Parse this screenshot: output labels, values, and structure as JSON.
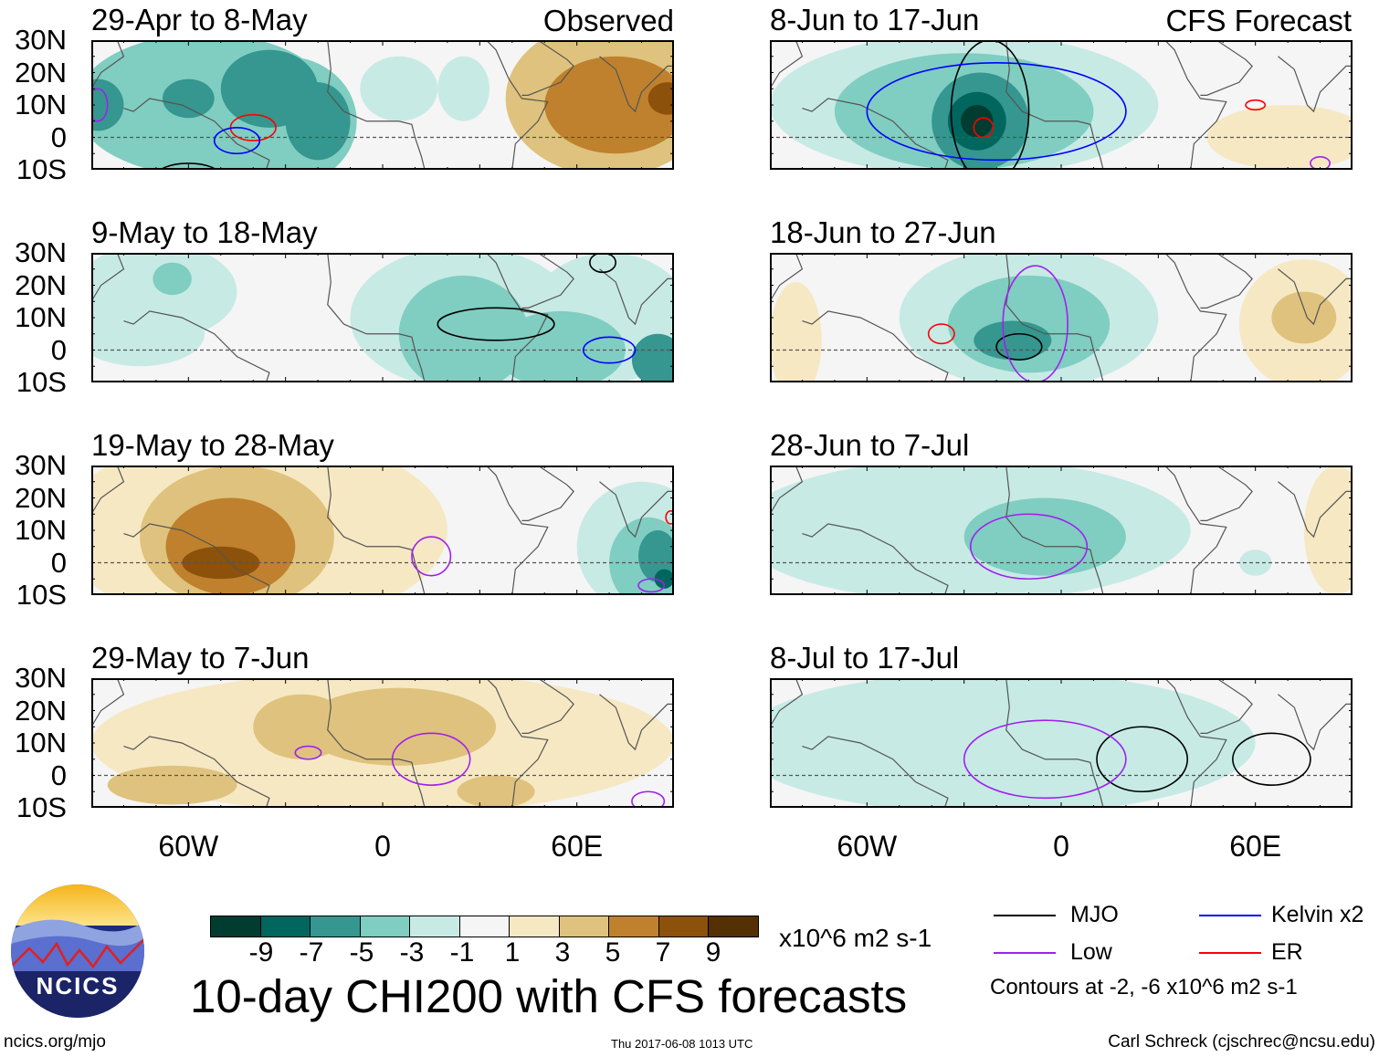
{
  "figure": {
    "title": "10-day CHI200 with CFS forecasts",
    "units": "x10^6 m2 s-1",
    "left_header": "Observed",
    "right_header": "CFS Forecast",
    "site": "ncics.org/mjo",
    "timestamp": "Thu 2017-06-08 1013 UTC",
    "author": "Carl Schreck (cjschrec@ncsu.edu)",
    "logo_text": "NCICS"
  },
  "axes": {
    "lat_labels": [
      "30N",
      "20N",
      "10N",
      "0",
      "10S"
    ],
    "lon_labels": [
      "60W",
      "0",
      "60E"
    ],
    "lon_values": [
      -60,
      0,
      60
    ],
    "lon_range": [
      -90,
      90
    ],
    "lat_range": [
      -10,
      30
    ]
  },
  "colorbar": {
    "colors": [
      "#003c30",
      "#01665e",
      "#35978f",
      "#80cdc1",
      "#c7eae5",
      "#f5f5f5",
      "#f6e8c3",
      "#dfc27d",
      "#bf812d",
      "#8c510a",
      "#543005"
    ],
    "labels": [
      "-9",
      "-7",
      "-5",
      "-3",
      "-1",
      "1",
      "3",
      "5",
      "7",
      "9"
    ],
    "level_colors": {
      "-9": "#003c30",
      "-7": "#01665e",
      "-5": "#35978f",
      "-3": "#80cdc1",
      "-1": "#c7eae5",
      "1": "#f6e8c3",
      "3": "#dfc27d",
      "5": "#bf812d",
      "7": "#8c510a",
      "9": "#543005"
    }
  },
  "legend": {
    "items": [
      {
        "label": "MJO",
        "color": "#000000"
      },
      {
        "label": "Kelvin x2",
        "color": "#0000ff"
      },
      {
        "label": "Low",
        "color": "#a020f0"
      },
      {
        "label": "ER",
        "color": "#ff0000"
      }
    ],
    "note": "Contours at -2, -6 x10^6 m2 s-1"
  },
  "panels": [
    {
      "title": "29-Apr to 8-May",
      "column": "left",
      "row": 0,
      "fill": [
        [
          -55,
          10,
          40,
          22,
          -3
        ],
        [
          -30,
          5,
          22,
          20,
          -3
        ],
        [
          -88,
          10,
          8,
          8,
          -5
        ],
        [
          -35,
          15,
          15,
          12,
          -5
        ],
        [
          -60,
          12,
          8,
          6,
          -5
        ],
        [
          -20,
          5,
          10,
          12,
          -5
        ],
        [
          5,
          15,
          12,
          10,
          -1
        ],
        [
          25,
          15,
          8,
          10,
          -1
        ],
        [
          70,
          12,
          32,
          24,
          3
        ],
        [
          72,
          10,
          22,
          15,
          5
        ],
        [
          88,
          12,
          6,
          5,
          7
        ]
      ],
      "contours": [
        [
          -40,
          3,
          7,
          4,
          "#ff0000"
        ],
        [
          -45,
          -1,
          7,
          4,
          "#0000ff"
        ],
        [
          -88,
          10,
          3,
          5,
          "#a020f0"
        ],
        [
          -60,
          -12,
          10,
          4,
          "#000000"
        ]
      ]
    },
    {
      "title": "9-May to 18-May",
      "column": "left",
      "row": 1,
      "fill": [
        [
          -70,
          18,
          25,
          15,
          -1
        ],
        [
          -75,
          5,
          20,
          10,
          -1
        ],
        [
          25,
          10,
          35,
          22,
          -1
        ],
        [
          70,
          10,
          25,
          20,
          -1
        ],
        [
          -65,
          22,
          6,
          5,
          -3
        ],
        [
          25,
          5,
          20,
          18,
          -3
        ],
        [
          55,
          0,
          20,
          12,
          -3
        ],
        [
          85,
          -3,
          8,
          8,
          -5
        ]
      ],
      "contours": [
        [
          35,
          8,
          18,
          5,
          "#000000"
        ],
        [
          70,
          0,
          8,
          4,
          "#0000ff"
        ],
        [
          68,
          27,
          4,
          3,
          "#000000"
        ]
      ]
    },
    {
      "title": "19-May to 28-May",
      "column": "left",
      "row": 2,
      "fill": [
        [
          -40,
          10,
          60,
          30,
          1
        ],
        [
          -45,
          8,
          30,
          22,
          3
        ],
        [
          -47,
          5,
          20,
          15,
          5
        ],
        [
          -50,
          0,
          12,
          5,
          7
        ],
        [
          80,
          5,
          20,
          20,
          -1
        ],
        [
          82,
          0,
          12,
          14,
          -3
        ],
        [
          85,
          2,
          6,
          8,
          -5
        ],
        [
          87,
          -5,
          3,
          3,
          -7
        ]
      ],
      "contours": [
        [
          15,
          2,
          6,
          6,
          "#a020f0"
        ],
        [
          83,
          -7,
          4,
          2,
          "#a020f0"
        ],
        [
          89,
          14,
          1.5,
          2,
          "#ff0000"
        ]
      ]
    },
    {
      "title": "29-May to 7-Jun",
      "column": "left",
      "row": 3,
      "fill": [
        [
          0,
          10,
          90,
          22,
          1
        ],
        [
          5,
          15,
          30,
          12,
          3
        ],
        [
          -25,
          15,
          15,
          10,
          3
        ],
        [
          -65,
          -3,
          20,
          6,
          3
        ],
        [
          35,
          -5,
          12,
          5,
          3
        ]
      ],
      "contours": [
        [
          -23,
          7,
          4,
          2,
          "#a020f0"
        ],
        [
          15,
          5,
          12,
          8,
          "#a020f0"
        ],
        [
          82,
          -8,
          5,
          3,
          "#a020f0"
        ]
      ]
    },
    {
      "title": "8-Jun to 17-Jun",
      "column": "right",
      "row": 0,
      "fill": [
        [
          -30,
          10,
          60,
          22,
          -1
        ],
        [
          -30,
          8,
          40,
          18,
          -3
        ],
        [
          -25,
          5,
          15,
          15,
          -5
        ],
        [
          -26,
          5,
          9,
          9,
          -7
        ],
        [
          -26,
          5,
          5,
          5,
          -9
        ],
        [
          70,
          0,
          25,
          10,
          1
        ]
      ],
      "contours": [
        [
          -22,
          8,
          12,
          22,
          "#000000"
        ],
        [
          -20,
          8,
          40,
          15,
          "#0000ff"
        ],
        [
          -24,
          3,
          3,
          3,
          "#ff0000"
        ],
        [
          60,
          10,
          3,
          1.5,
          "#ff0000"
        ],
        [
          80,
          -8,
          3,
          2,
          "#a020f0"
        ]
      ]
    },
    {
      "title": "18-Jun to 27-Jun",
      "column": "right",
      "row": 1,
      "fill": [
        [
          -10,
          10,
          40,
          22,
          -1
        ],
        [
          -10,
          8,
          25,
          15,
          -3
        ],
        [
          -15,
          3,
          12,
          6,
          -5
        ],
        [
          75,
          8,
          20,
          20,
          1
        ],
        [
          75,
          10,
          10,
          8,
          3
        ],
        [
          -82,
          3,
          8,
          18,
          1
        ]
      ],
      "contours": [
        [
          -37,
          5,
          4,
          3,
          "#ff0000"
        ],
        [
          -13,
          1,
          7,
          4,
          "#000000"
        ],
        [
          -8,
          8,
          10,
          18,
          "#a020f0"
        ]
      ]
    },
    {
      "title": "28-Jun to 7-Jul",
      "column": "right",
      "row": 2,
      "fill": [
        [
          -30,
          10,
          70,
          22,
          -1
        ],
        [
          -5,
          8,
          25,
          12,
          -3
        ],
        [
          85,
          10,
          10,
          20,
          1
        ],
        [
          60,
          0,
          5,
          4,
          -1
        ]
      ],
      "contours": [
        [
          -10,
          5,
          18,
          10,
          "#a020f0"
        ]
      ]
    },
    {
      "title": "8-Jul to 17-Jul",
      "column": "right",
      "row": 3,
      "fill": [
        [
          -20,
          10,
          80,
          22,
          -1
        ]
      ],
      "contours": [
        [
          25,
          5,
          14,
          10,
          "#000000"
        ],
        [
          65,
          5,
          12,
          8,
          "#000000"
        ],
        [
          -5,
          5,
          25,
          12,
          "#a020f0"
        ]
      ]
    }
  ]
}
